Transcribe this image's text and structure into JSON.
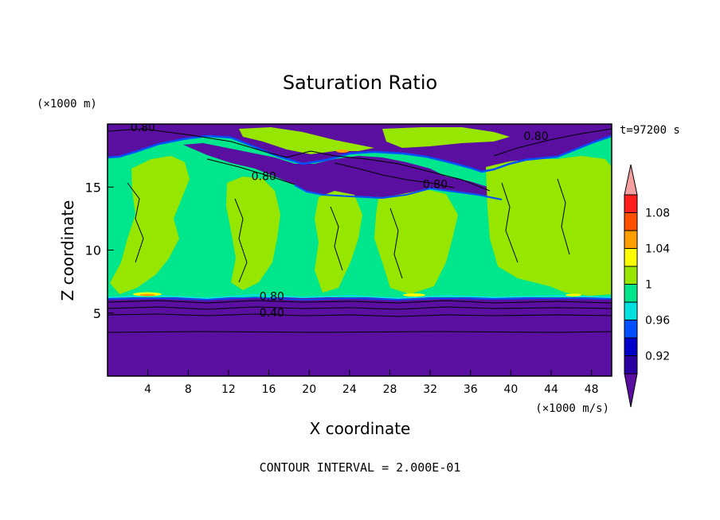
{
  "chart_data": {
    "type": "heatmap",
    "title": "Saturation Ratio",
    "xlabel": "X coordinate",
    "ylabel": "Z coordinate",
    "x_unit": "(×1000 m/s)",
    "y_unit": "(×1000 m)",
    "time_label": "t=97200 s",
    "footer": "CONTOUR INTERVAL = 2.000E-01",
    "xlim": [
      0,
      50
    ],
    "ylim": [
      0,
      20
    ],
    "x_ticks": [
      4,
      8,
      12,
      16,
      20,
      24,
      28,
      32,
      36,
      40,
      44,
      48
    ],
    "y_ticks": [
      5,
      10,
      15
    ],
    "colorbar": {
      "labels": [
        "0.92",
        "0.96",
        "1",
        "1.04",
        "1.08"
      ],
      "levels": [
        0.9,
        0.92,
        0.94,
        0.96,
        0.98,
        1.0,
        1.02,
        1.04,
        1.06,
        1.08,
        1.1
      ],
      "colors": [
        "#5a0fa0",
        "#2b00a0",
        "#0000c8",
        "#0050ff",
        "#00e0e0",
        "#00e68c",
        "#96e600",
        "#ffff00",
        "#ffa000",
        "#ff5000",
        "#ff1e1e",
        "#f5a0a0"
      ]
    },
    "contour_labels": [
      {
        "text": "0.80",
        "x": 3.5,
        "y": 19.5
      },
      {
        "text": "0.80",
        "x": 42.5,
        "y": 18.8
      },
      {
        "text": "0.80",
        "x": 15.5,
        "y": 15.6
      },
      {
        "text": "0.80",
        "x": 32.5,
        "y": 15.0
      },
      {
        "text": "0.80",
        "x": 16.3,
        "y": 6.1
      },
      {
        "text": "0.40",
        "x": 16.3,
        "y": 4.8
      }
    ]
  }
}
